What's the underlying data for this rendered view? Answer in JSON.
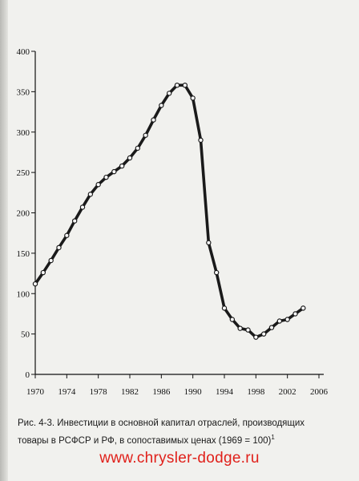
{
  "chart_data": {
    "type": "line",
    "title": "",
    "xlabel": "",
    "ylabel": "",
    "xlim": [
      1970,
      2006
    ],
    "ylim": [
      0,
      400
    ],
    "xticks": [
      1970,
      1974,
      1978,
      1982,
      1986,
      1990,
      1994,
      1998,
      2002,
      2006
    ],
    "yticks": [
      0,
      50,
      100,
      150,
      200,
      250,
      300,
      350,
      400
    ],
    "grid": false,
    "legend": "none",
    "line_color": "#1a1a1a",
    "series": [
      {
        "x": [
          1970,
          1971,
          1972,
          1973,
          1974,
          1975,
          1976,
          1977,
          1978,
          1979,
          1980,
          1981,
          1982,
          1983,
          1984,
          1985,
          1986,
          1987,
          1988,
          1989,
          1990,
          1991,
          1992,
          1993,
          1994,
          1995,
          1996,
          1997,
          1998,
          1999,
          2000,
          2001,
          2002,
          2003,
          2004
        ],
        "values": [
          112,
          126,
          141,
          157,
          172,
          190,
          207,
          223,
          235,
          244,
          251,
          258,
          268,
          280,
          296,
          315,
          333,
          348,
          358,
          358,
          342,
          290,
          163,
          126,
          82,
          68,
          57,
          55,
          46,
          50,
          58,
          66,
          68,
          75,
          82
        ]
      }
    ]
  },
  "caption": {
    "line1": "Рис. 4-3. Инвестиции в основной капитал отраслей, производящих",
    "line2": "товары в РСФСР и РФ, в сопоставимых ценах (1969 = 100)",
    "footnote_mark": "1"
  },
  "watermark": "www.chrysler-dodge.ru"
}
